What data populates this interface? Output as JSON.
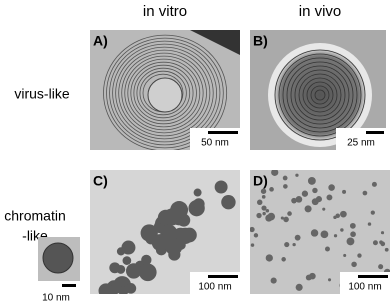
{
  "header": {
    "columns": [
      "in vitro",
      "in vivo"
    ]
  },
  "rows": {
    "virus": "virus-like",
    "chromatin": [
      "chromatin",
      "-like"
    ]
  },
  "panels": [
    {
      "label": "A)",
      "scale": "50 nm"
    },
    {
      "label": "B)",
      "scale": "25 nm"
    },
    {
      "label": "C)",
      "scale": "100 nm"
    },
    {
      "label": "D)",
      "scale": "100 nm"
    }
  ],
  "inset": {
    "scale": "10 nm"
  }
}
